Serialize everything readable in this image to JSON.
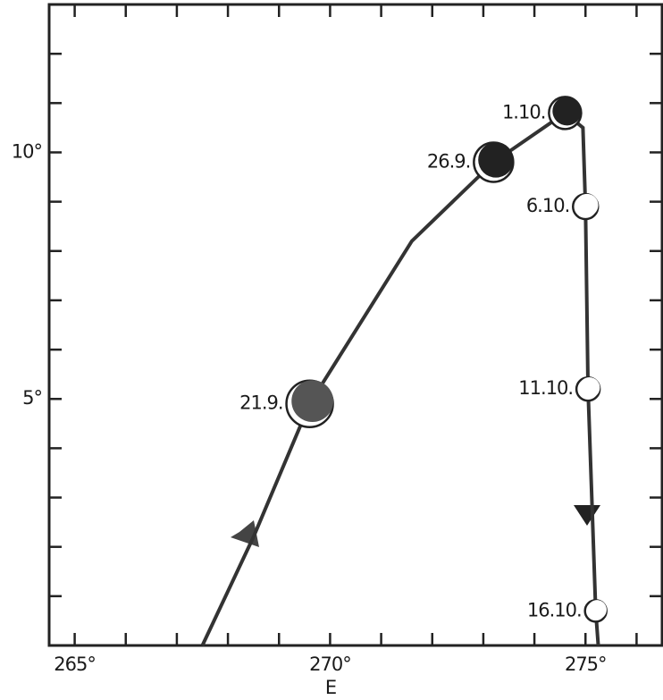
{
  "chart_data": {
    "type": "line",
    "xlabel": "E",
    "xlim": [
      264.5,
      276.5
    ],
    "ylim": [
      0,
      13
    ],
    "xticks": [
      {
        "value": 265,
        "label": "265°"
      },
      {
        "value": 270,
        "label": "270°"
      },
      {
        "value": 275,
        "label": "275°"
      }
    ],
    "yticks": [
      {
        "value": 5,
        "label": "5°"
      },
      {
        "value": 10,
        "label": "10°"
      }
    ],
    "xminor": [
      265,
      266,
      267,
      268,
      269,
      270,
      271,
      272,
      273,
      274,
      275,
      276
    ],
    "yminor": [
      1,
      2,
      3,
      4,
      5,
      6,
      7,
      8,
      9,
      10,
      11,
      12
    ],
    "series": [
      {
        "color": "#333333",
        "x": [
          267.5,
          268.5,
          269.6,
          271.6,
          273.2,
          274.6,
          274.95,
          275.0,
          275.05,
          275.2,
          275.25
        ],
        "y": [
          0,
          2.2,
          4.9,
          8.2,
          9.8,
          10.8,
          10.5,
          8.9,
          5.2,
          0.7,
          0
        ]
      }
    ],
    "points": {
      "labels": [
        "21.9.",
        "26.9.",
        "1.10.",
        "6.10.",
        "11.10.",
        "16.10."
      ],
      "x": [
        269.6,
        273.2,
        274.6,
        275.0,
        275.05,
        275.2
      ],
      "y": [
        4.9,
        9.8,
        10.8,
        8.9,
        5.2,
        0.7
      ],
      "dark_fill": [
        "#555555",
        "#222222",
        "#222222",
        "#ffffff",
        "#ffffff",
        "#ffffff"
      ],
      "radius": [
        26,
        22,
        18,
        14,
        13,
        12
      ]
    }
  }
}
